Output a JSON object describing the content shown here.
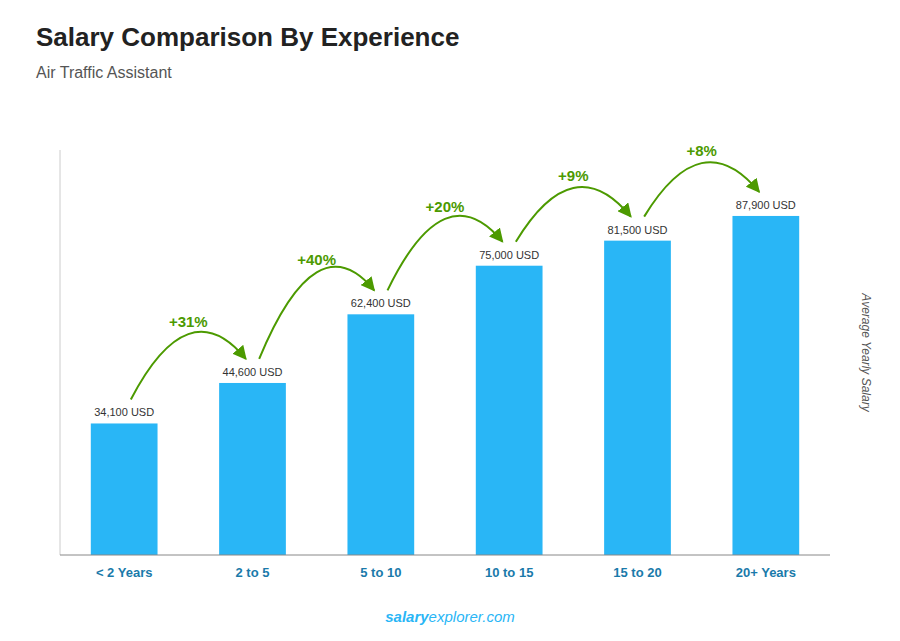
{
  "chart_data": {
    "type": "bar",
    "title": "Salary Comparison By Experience",
    "subtitle": "Air Traffic Assistant",
    "ylabel": "Average Yearly Salary",
    "categories": [
      "< 2 Years",
      "2 to 5",
      "5 to 10",
      "10 to 15",
      "15 to 20",
      "20+ Years"
    ],
    "values": [
      34100,
      44600,
      62400,
      75000,
      81500,
      87900
    ],
    "value_labels": [
      "34,100 USD",
      "44,600 USD",
      "62,400 USD",
      "75,000 USD",
      "81,500 USD",
      "87,900 USD"
    ],
    "annotations": [
      "+31%",
      "+40%",
      "+20%",
      "+9%",
      "+8%"
    ],
    "footer": [
      "salary",
      "explorer.com"
    ],
    "color": "#29b6f6",
    "ylim": [
      0,
      105000
    ],
    "data_labels": true,
    "tick_labels": "x",
    "grid": false
  }
}
